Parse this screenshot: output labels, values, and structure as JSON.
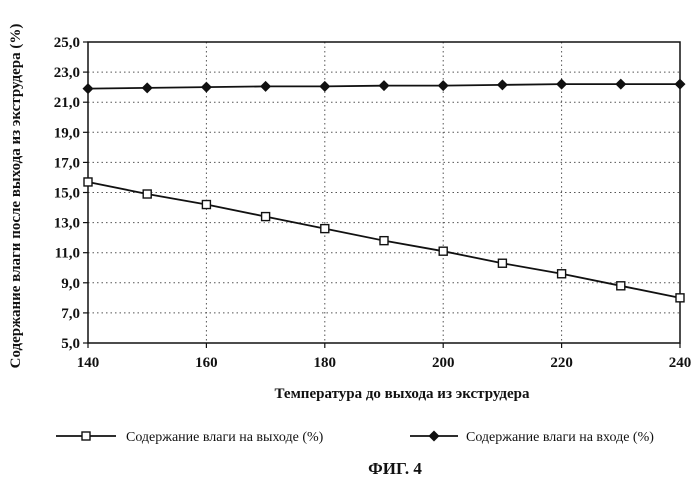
{
  "chart_data": {
    "type": "line",
    "title": "",
    "xlabel": "Температура до выхода из экструдера",
    "ylabel": "Содержание влаги после выхода из экструдера (%)",
    "xlim": [
      140,
      240
    ],
    "ylim": [
      5.0,
      25.0
    ],
    "x_ticks": [
      "140",
      "160",
      "180",
      "200",
      "220",
      "240"
    ],
    "x_tick_values": [
      140,
      160,
      180,
      200,
      220,
      240
    ],
    "y_ticks": [
      "5,0",
      "7,0",
      "9,0",
      "11,0",
      "13,0",
      "15,0",
      "17,0",
      "19,0",
      "21,0",
      "23,0",
      "25,0"
    ],
    "y_tick_values": [
      5,
      7,
      9,
      11,
      13,
      15,
      17,
      19,
      21,
      23,
      25
    ],
    "grid": true,
    "legend_position": "bottom",
    "x": [
      140,
      150,
      160,
      170,
      180,
      190,
      200,
      210,
      220,
      230,
      240
    ],
    "series": [
      {
        "name": "Содержание влаги на выходе (%)",
        "marker": "square",
        "color": "#111111",
        "values": [
          15.7,
          14.9,
          14.2,
          13.4,
          12.6,
          11.8,
          11.1,
          10.3,
          9.6,
          8.8,
          8.0
        ]
      },
      {
        "name": "Содержание влаги на входе (%)",
        "marker": "diamond",
        "color": "#111111",
        "values": [
          21.9,
          21.95,
          22.0,
          22.05,
          22.05,
          22.1,
          22.1,
          22.15,
          22.2,
          22.2,
          22.2
        ]
      }
    ]
  },
  "figure_label": "ФИГ. 4"
}
